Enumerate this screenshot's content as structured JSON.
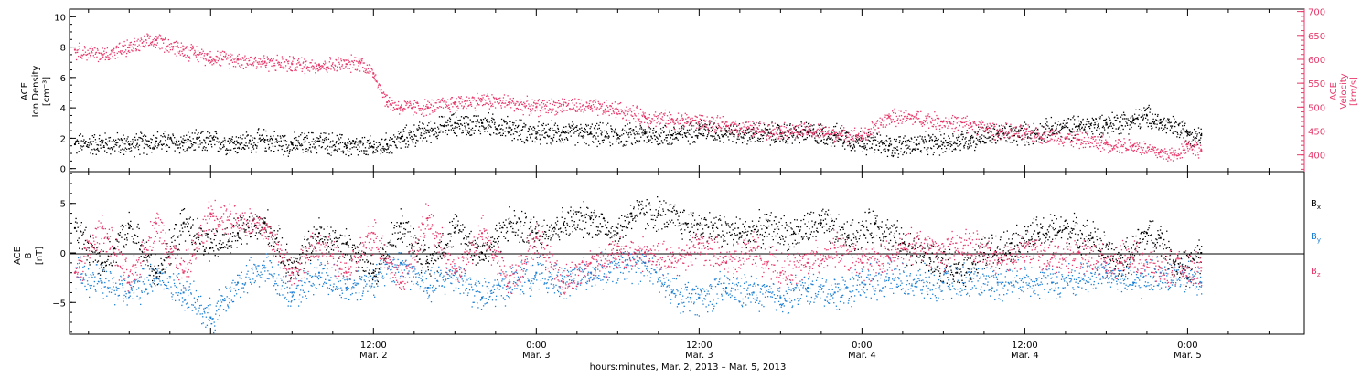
{
  "colors": {
    "density": "#000000",
    "velocity": "#e8386a",
    "bx": "#000000",
    "by": "#1a7fd4",
    "bz": "#e8386a",
    "axis": "#000000"
  },
  "xaxis": {
    "ticks": [
      {
        "t": 12,
        "time": "12:00",
        "date": "Mar. 2"
      },
      {
        "t": 24,
        "time": "0:00",
        "date": "Mar. 3"
      },
      {
        "t": 36,
        "time": "12:00",
        "date": "Mar. 3"
      },
      {
        "t": 48,
        "time": "0:00",
        "date": "Mar. 4"
      },
      {
        "t": 60,
        "time": "12:00",
        "date": "Mar. 4"
      },
      {
        "t": 72,
        "time": "0:00",
        "date": "Mar. 5"
      }
    ],
    "label": "hours:minutes, Mar.  2, 2013 – Mar.  5, 2013",
    "range_hours_from_mar2": [
      -10.4,
      80.6
    ]
  },
  "panel_top": {
    "left_label_line1": "ACE",
    "left_label_line2": "Ion Density",
    "left_label_line3": "[cm⁻³]",
    "right_label_line1": "ACE",
    "right_label_line2": "Velocity",
    "right_label_line3": "[km/s]",
    "left_ticks": [
      "0",
      "2",
      "4",
      "6",
      "8",
      "10"
    ],
    "right_ticks": [
      "400",
      "450",
      "500",
      "550",
      "600",
      "650",
      "700"
    ]
  },
  "panel_bottom": {
    "left_label_line1": "ACE",
    "left_label_line2": "B",
    "left_label_line3": "[nT]",
    "left_ticks": [
      "−5",
      "0",
      "5"
    ],
    "legend_bx": "B",
    "legend_bx_sub": "x",
    "legend_by": "B",
    "legend_by_sub": "y",
    "legend_bz": "B",
    "legend_bz_sub": "z"
  },
  "chart_data": [
    {
      "type": "scatter",
      "panel": "top",
      "x_units": "hours since Mar. 2, 2013 0:00",
      "xlim": [
        -10.4,
        80.6
      ],
      "ylim_left": [
        -0.2,
        10.5
      ],
      "ylim_right": [
        365,
        705
      ],
      "series": [
        {
          "axis": "left",
          "color": "#000000",
          "points": [
            [
              -10,
              1.6
            ],
            [
              -8,
              1.7
            ],
            [
              -6,
              1.6
            ],
            [
              -4,
              1.8
            ],
            [
              -2,
              1.7
            ],
            [
              0,
              1.8
            ],
            [
              2,
              1.7
            ],
            [
              4,
              1.9
            ],
            [
              6,
              1.6
            ],
            [
              8,
              1.8
            ],
            [
              10,
              1.5
            ],
            [
              12,
              1.4
            ],
            [
              13,
              1.6
            ],
            [
              14,
              2.0
            ],
            [
              16,
              2.5
            ],
            [
              18,
              3.0
            ],
            [
              19,
              2.9
            ],
            [
              20,
              3.0
            ],
            [
              22,
              2.7
            ],
            [
              24,
              2.3
            ],
            [
              26,
              2.4
            ],
            [
              28,
              2.3
            ],
            [
              30,
              2.2
            ],
            [
              32,
              2.3
            ],
            [
              34,
              2.2
            ],
            [
              36,
              2.6
            ],
            [
              38,
              2.5
            ],
            [
              40,
              2.3
            ],
            [
              42,
              2.3
            ],
            [
              44,
              2.4
            ],
            [
              46,
              2.2
            ],
            [
              48,
              1.8
            ],
            [
              50,
              1.5
            ],
            [
              52,
              1.6
            ],
            [
              54,
              1.7
            ],
            [
              56,
              2.0
            ],
            [
              58,
              2.3
            ],
            [
              60,
              2.3
            ],
            [
              62,
              2.6
            ],
            [
              64,
              2.8
            ],
            [
              66,
              3.0
            ],
            [
              68,
              3.2
            ],
            [
              69,
              3.5
            ],
            [
              70,
              3.0
            ],
            [
              72,
              2.4
            ],
            [
              73,
              2.2
            ]
          ]
        },
        {
          "axis": "right",
          "color": "#e8386a",
          "points": [
            [
              -10,
              620
            ],
            [
              -8,
              610
            ],
            [
              -6,
              625
            ],
            [
              -4,
              640
            ],
            [
              -2,
              620
            ],
            [
              0,
              605
            ],
            [
              2,
              600
            ],
            [
              4,
              595
            ],
            [
              6,
              590
            ],
            [
              8,
              588
            ],
            [
              10,
              590
            ],
            [
              11,
              595
            ],
            [
              12,
              570
            ],
            [
              13,
              510
            ],
            [
              14,
              500
            ],
            [
              16,
              500
            ],
            [
              18,
              510
            ],
            [
              20,
              515
            ],
            [
              22,
              510
            ],
            [
              24,
              500
            ],
            [
              26,
              505
            ],
            [
              28,
              500
            ],
            [
              30,
              495
            ],
            [
              32,
              480
            ],
            [
              34,
              475
            ],
            [
              36,
              470
            ],
            [
              38,
              460
            ],
            [
              40,
              455
            ],
            [
              42,
              452
            ],
            [
              44,
              450
            ],
            [
              46,
              445
            ],
            [
              48,
              440
            ],
            [
              50,
              480
            ],
            [
              52,
              478
            ],
            [
              54,
              470
            ],
            [
              56,
              465
            ],
            [
              58,
              450
            ],
            [
              60,
              445
            ],
            [
              62,
              442
            ],
            [
              64,
              432
            ],
            [
              66,
              425
            ],
            [
              68,
              420
            ],
            [
              70,
              405
            ],
            [
              71,
              400
            ],
            [
              72,
              422
            ],
            [
              73,
              410
            ]
          ]
        }
      ]
    },
    {
      "type": "scatter",
      "panel": "bottom",
      "x_units": "hours since Mar. 2, 2013 0:00",
      "xlim": [
        -10.4,
        80.6
      ],
      "ylim": [
        -8.2,
        8.2
      ],
      "series": [
        {
          "name": "Bx",
          "color": "#000000",
          "points": [
            [
              -10,
              2.5
            ],
            [
              -8,
              -1
            ],
            [
              -6,
              2.5
            ],
            [
              -4,
              -2
            ],
            [
              -2,
              3
            ],
            [
              0,
              0.5
            ],
            [
              2,
              2
            ],
            [
              4,
              3
            ],
            [
              6,
              -1.5
            ],
            [
              8,
              2
            ],
            [
              10,
              1
            ],
            [
              12,
              -2
            ],
            [
              14,
              3
            ],
            [
              16,
              -1
            ],
            [
              18,
              2.5
            ],
            [
              20,
              0
            ],
            [
              22,
              3
            ],
            [
              24,
              2
            ],
            [
              26,
              3
            ],
            [
              28,
              3.5
            ],
            [
              30,
              2
            ],
            [
              31,
              4
            ],
            [
              33,
              4
            ],
            [
              35,
              3
            ],
            [
              37,
              2.5
            ],
            [
              39,
              2
            ],
            [
              41,
              2.5
            ],
            [
              43,
              2
            ],
            [
              45,
              3
            ],
            [
              47,
              1.5
            ],
            [
              49,
              3
            ],
            [
              51,
              1
            ],
            [
              53,
              -0.5
            ],
            [
              55,
              -2
            ],
            [
              57,
              0
            ],
            [
              59,
              1
            ],
            [
              61,
              2
            ],
            [
              63,
              2.5
            ],
            [
              65,
              1.5
            ],
            [
              67,
              -1
            ],
            [
              69,
              2
            ],
            [
              70,
              1.5
            ],
            [
              71,
              -1
            ],
            [
              72,
              -1.5
            ],
            [
              73,
              0
            ]
          ]
        },
        {
          "name": "By",
          "color": "#1a7fd4",
          "points": [
            [
              -10,
              -2
            ],
            [
              -8,
              -3
            ],
            [
              -6,
              -4
            ],
            [
              -4,
              -2
            ],
            [
              -2,
              -4
            ],
            [
              0,
              -6.5
            ],
            [
              2,
              -3
            ],
            [
              4,
              -1.5
            ],
            [
              6,
              -4
            ],
            [
              8,
              -2
            ],
            [
              10,
              -3.5
            ],
            [
              12,
              -2.5
            ],
            [
              14,
              -1
            ],
            [
              16,
              -3.5
            ],
            [
              18,
              -2
            ],
            [
              20,
              -4.5
            ],
            [
              22,
              -3
            ],
            [
              24,
              -2
            ],
            [
              26,
              -3
            ],
            [
              28,
              -2
            ],
            [
              30,
              -1.5
            ],
            [
              32,
              -1
            ],
            [
              34,
              -4
            ],
            [
              36,
              -4.5
            ],
            [
              38,
              -3.5
            ],
            [
              40,
              -4
            ],
            [
              42,
              -4.5
            ],
            [
              44,
              -3.5
            ],
            [
              46,
              -4
            ],
            [
              48,
              -3
            ],
            [
              50,
              -2.5
            ],
            [
              52,
              -3
            ],
            [
              54,
              -3
            ],
            [
              56,
              -2.5
            ],
            [
              58,
              -3
            ],
            [
              60,
              -2.5
            ],
            [
              62,
              -3
            ],
            [
              64,
              -2.5
            ],
            [
              66,
              -2
            ],
            [
              68,
              -3
            ],
            [
              70,
              -2
            ],
            [
              72,
              -2.5
            ],
            [
              73,
              -3
            ]
          ]
        },
        {
          "name": "Bz",
          "color": "#e8386a",
          "points": [
            [
              -10,
              -2
            ],
            [
              -8,
              2.5
            ],
            [
              -6,
              -3
            ],
            [
              -4,
              3
            ],
            [
              -2,
              -2
            ],
            [
              0,
              4
            ],
            [
              2,
              3.5
            ],
            [
              4,
              2.5
            ],
            [
              6,
              -2
            ],
            [
              8,
              1
            ],
            [
              10,
              -2
            ],
            [
              12,
              2
            ],
            [
              14,
              -3
            ],
            [
              16,
              3.5
            ],
            [
              18,
              -2
            ],
            [
              20,
              2
            ],
            [
              22,
              -3
            ],
            [
              24,
              1.5
            ],
            [
              26,
              -3
            ],
            [
              28,
              -1
            ],
            [
              30,
              0
            ],
            [
              32,
              0
            ],
            [
              34,
              -1
            ],
            [
              36,
              1
            ],
            [
              38,
              -1
            ],
            [
              40,
              0.5
            ],
            [
              42,
              -2
            ],
            [
              44,
              -1
            ],
            [
              46,
              0.5
            ],
            [
              48,
              -1
            ],
            [
              50,
              -0.5
            ],
            [
              52,
              1
            ],
            [
              54,
              0
            ],
            [
              56,
              1
            ],
            [
              58,
              -1
            ],
            [
              60,
              0.5
            ],
            [
              62,
              -0.5
            ],
            [
              64,
              0
            ],
            [
              66,
              -1
            ],
            [
              68,
              -0.5
            ],
            [
              70,
              -1.5
            ],
            [
              72,
              -1.5
            ],
            [
              73,
              -1.5
            ]
          ]
        }
      ]
    }
  ]
}
